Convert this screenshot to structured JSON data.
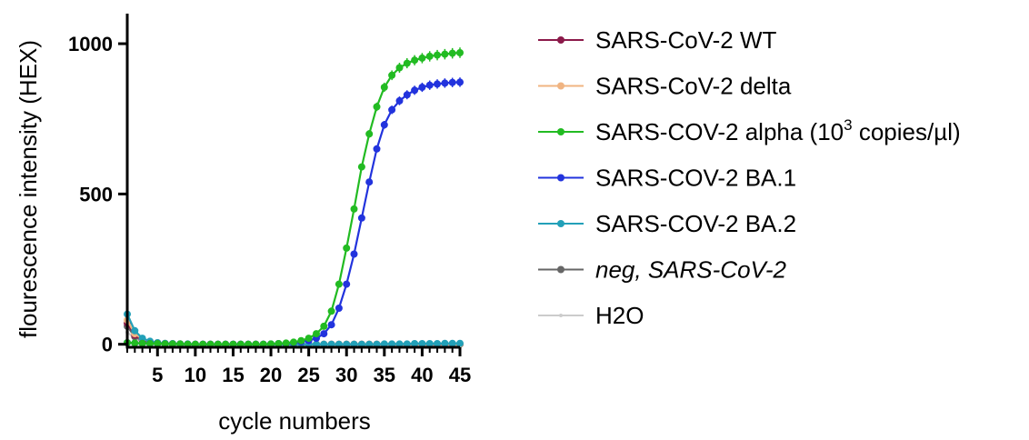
{
  "chart_data": {
    "type": "line",
    "title": "",
    "xlabel": "cycle numbers",
    "ylabel": "flourescence intensity (HEX)",
    "xlim": [
      1,
      45
    ],
    "ylim": [
      -10,
      1100
    ],
    "x_ticks": [
      5,
      10,
      15,
      20,
      25,
      30,
      35,
      40,
      45
    ],
    "y_ticks": [
      0,
      500,
      1000
    ],
    "grid": false,
    "legend_position": "right",
    "x": [
      1,
      2,
      3,
      4,
      5,
      6,
      7,
      8,
      9,
      10,
      11,
      12,
      13,
      14,
      15,
      16,
      17,
      18,
      19,
      20,
      21,
      22,
      23,
      24,
      25,
      26,
      27,
      28,
      29,
      30,
      31,
      32,
      33,
      34,
      35,
      36,
      37,
      38,
      39,
      40,
      41,
      42,
      43,
      44,
      45
    ],
    "series": [
      {
        "name": "SARS-CoV-2 WT",
        "color": "#8b1a4a",
        "values": [
          70,
          30,
          15,
          8,
          4,
          2,
          1,
          1,
          0,
          0,
          0,
          0,
          0,
          0,
          0,
          0,
          0,
          0,
          0,
          0,
          0,
          0,
          0,
          0,
          0,
          0,
          0,
          0,
          0,
          0,
          0,
          0,
          0,
          0,
          0,
          0,
          0,
          0,
          0,
          0,
          0,
          0,
          0,
          1,
          1
        ]
      },
      {
        "name": "SARS-CoV-2 delta",
        "color": "#f0b482",
        "values": [
          80,
          35,
          18,
          9,
          5,
          3,
          2,
          1,
          1,
          0,
          0,
          0,
          0,
          0,
          0,
          0,
          0,
          0,
          0,
          0,
          0,
          0,
          0,
          0,
          0,
          0,
          0,
          0,
          0,
          0,
          0,
          0,
          0,
          0,
          0,
          0,
          0,
          0,
          0,
          0,
          1,
          1,
          1,
          1,
          1
        ]
      },
      {
        "name": "SARS-COV-2 alpha (10",
        "name_sup": "3",
        "name_suffix": " copies/µl)",
        "color": "#22bb22",
        "values": [
          5,
          4,
          3,
          2,
          2,
          1,
          1,
          1,
          0,
          0,
          0,
          0,
          0,
          0,
          0,
          0,
          0,
          0,
          0,
          1,
          2,
          4,
          7,
          12,
          20,
          35,
          60,
          110,
          200,
          320,
          450,
          590,
          700,
          790,
          855,
          895,
          920,
          935,
          945,
          952,
          958,
          962,
          965,
          968,
          970
        ]
      },
      {
        "name": "SARS-COV-2 BA.1",
        "color": "#2233dd",
        "values": [
          5,
          4,
          3,
          2,
          2,
          1,
          1,
          1,
          0,
          0,
          0,
          0,
          0,
          0,
          0,
          0,
          0,
          0,
          0,
          1,
          2,
          3,
          5,
          8,
          12,
          20,
          35,
          65,
          120,
          200,
          300,
          420,
          540,
          650,
          730,
          780,
          810,
          830,
          845,
          855,
          862,
          866,
          869,
          871,
          872
        ]
      },
      {
        "name": "SARS-COV-2 BA.2",
        "color": "#22a0b8",
        "values": [
          100,
          45,
          20,
          10,
          5,
          3,
          2,
          1,
          1,
          0,
          0,
          0,
          0,
          0,
          0,
          0,
          0,
          0,
          0,
          0,
          0,
          0,
          0,
          0,
          0,
          0,
          0,
          0,
          0,
          0,
          0,
          0,
          0,
          0,
          1,
          1,
          1,
          1,
          2,
          2,
          2,
          2,
          3,
          3,
          3
        ]
      },
      {
        "name": "neg, SARS-CoV-2",
        "italic": true,
        "color": "#666666",
        "values": [
          60,
          25,
          12,
          6,
          3,
          2,
          1,
          1,
          0,
          0,
          0,
          0,
          0,
          0,
          0,
          0,
          0,
          0,
          0,
          0,
          0,
          0,
          0,
          0,
          0,
          0,
          0,
          0,
          0,
          0,
          0,
          0,
          0,
          0,
          0,
          0,
          0,
          0,
          0,
          0,
          0,
          0,
          0,
          0,
          0
        ]
      },
      {
        "name": "H2O",
        "color": "#cccccc",
        "values": [
          40,
          20,
          10,
          5,
          3,
          2,
          1,
          0,
          0,
          0,
          0,
          0,
          0,
          0,
          0,
          0,
          0,
          0,
          0,
          0,
          0,
          0,
          0,
          0,
          0,
          0,
          0,
          0,
          0,
          0,
          0,
          0,
          0,
          0,
          0,
          0,
          0,
          0,
          0,
          0,
          0,
          0,
          0,
          0,
          0
        ]
      }
    ]
  }
}
